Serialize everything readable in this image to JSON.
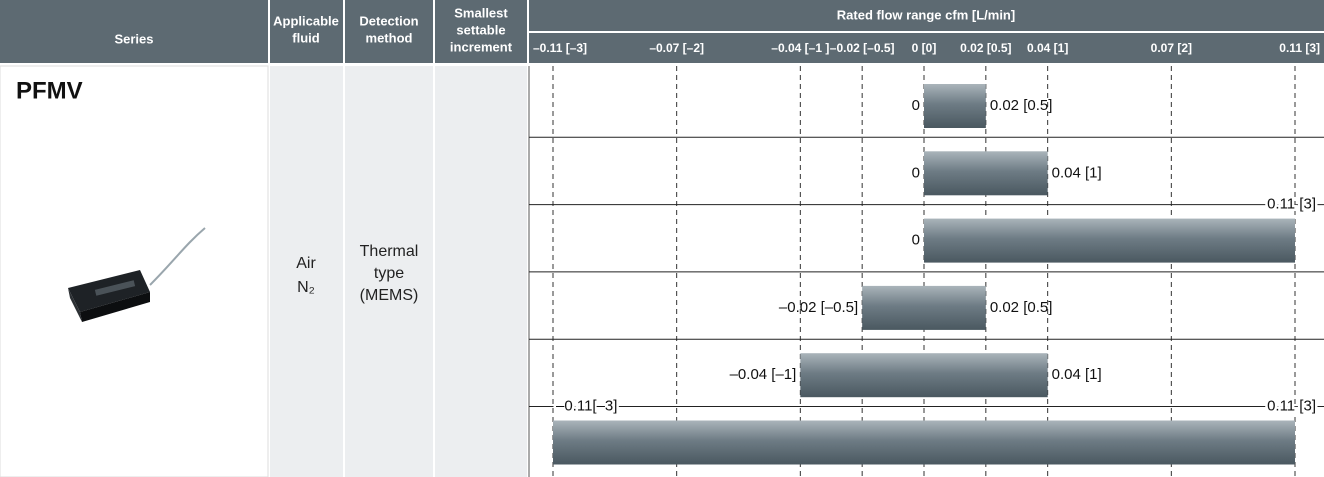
{
  "header": {
    "series": "Series",
    "fluid": [
      "Applicable",
      "fluid"
    ],
    "detection": [
      "Detection",
      "method"
    ],
    "increment": [
      "Smallest",
      "settable",
      "increment"
    ],
    "range_title": "Rated flow range  cfm [L/min]"
  },
  "axis": {
    "xlim": [
      -3,
      3
    ],
    "ticks": [
      {
        "value": -3,
        "label": "–0.11 [–3]"
      },
      {
        "value": -2,
        "label": "–0.07 [–2]"
      },
      {
        "value": -1,
        "label": "–0.04 [–1 ]"
      },
      {
        "value": -0.5,
        "label": "–0.02 [–0.5]"
      },
      {
        "value": 0,
        "label": "0 [0]"
      },
      {
        "value": 0.5,
        "label": "0.02 [0.5]"
      },
      {
        "value": 1,
        "label": "0.04 [1]"
      },
      {
        "value": 2,
        "label": "0.07 [2]"
      },
      {
        "value": 3,
        "label": "0.11 [3]"
      }
    ]
  },
  "body": {
    "series": "PFMV",
    "fluid": [
      "Air",
      "N₂"
    ],
    "detection": [
      "Thermal",
      "type",
      "(MEMS)"
    ],
    "ranges": [
      {
        "low": 0,
        "high": 0.5,
        "low_label": "0",
        "high_label": "0.02 [0.5]"
      },
      {
        "low": 0,
        "high": 1,
        "low_label": "0",
        "high_label": "0.04 [1]"
      },
      {
        "low": 0,
        "high": 3,
        "low_label": "0",
        "high_label": "0.11 [3]"
      },
      {
        "low": -0.5,
        "high": 0.5,
        "low_label": "–0.02 [–0.5]",
        "high_label": "0.02 [0.5]"
      },
      {
        "low": -1,
        "high": 1,
        "low_label": "–0.04 [–1]",
        "high_label": "0.04 [1]"
      },
      {
        "low": -3,
        "high": 3,
        "low_label": "–0.11[–3]",
        "high_label": "0.11 [3]"
      }
    ]
  }
}
